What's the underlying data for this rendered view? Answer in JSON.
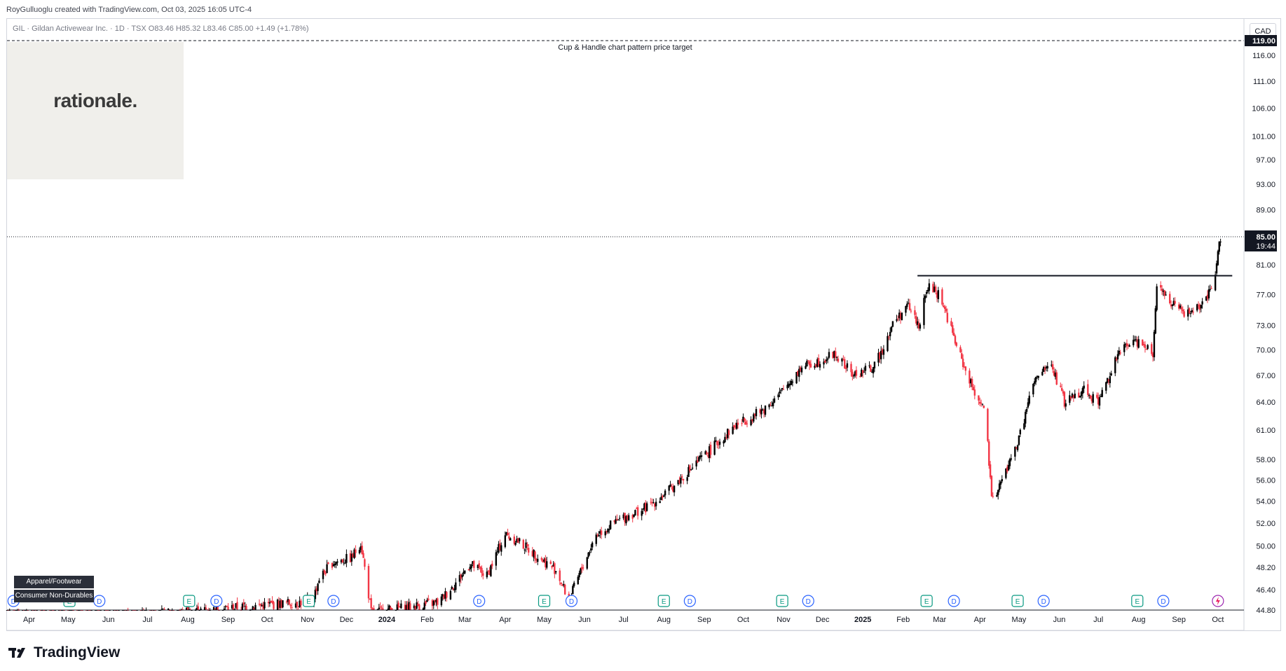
{
  "header": {
    "credit": "RoyGulluoglu created with TradingView.com, Oct 03, 2025 16:05 UTC-4",
    "symbol_line": "GIL · Gildan Activewear Inc. · 1D · TSX  O83.46  H85.32  L83.46  C85.00  +1.49 (+1.78%)"
  },
  "watermark": {
    "text": "rationale."
  },
  "currency": "CAD",
  "footer": {
    "brand": "TradingView"
  },
  "sector_tags": [
    "Apparel/Footwear",
    "Consumer Non-Durables"
  ],
  "colors": {
    "up": "#000000",
    "down": "#f23645",
    "event_earnings": "#089981",
    "event_dividend": "#2962ff",
    "grid": "#ffffff"
  },
  "chart_data": {
    "type": "candlestick",
    "title": "",
    "price_scale": "log",
    "ylim": [
      44.8,
      119.0
    ],
    "y_ticks": [
      "116.00",
      "111.00",
      "106.00",
      "101.00",
      "97.00",
      "93.00",
      "89.00",
      "81.00",
      "77.00",
      "73.00",
      "70.00",
      "67.00",
      "64.00",
      "61.00",
      "58.00",
      "56.00",
      "54.00",
      "52.00",
      "50.00",
      "48.20",
      "46.40",
      "44.80"
    ],
    "y_tick_values": [
      116,
      111,
      106,
      101,
      97,
      93,
      89,
      81,
      77,
      73,
      70,
      67,
      64,
      61,
      58,
      56,
      54,
      52,
      50,
      48.2,
      46.4,
      44.8
    ],
    "x_ticks": [
      "Apr",
      "May",
      "Jun",
      "Jul",
      "Aug",
      "Sep",
      "Oct",
      "Nov",
      "Dec",
      "2024",
      "Feb",
      "Mar",
      "Apr",
      "May",
      "Jun",
      "Jul",
      "Aug",
      "Sep",
      "Oct",
      "Nov",
      "Dec",
      "2025",
      "Feb",
      "Mar",
      "Apr",
      "May",
      "Jun",
      "Jul",
      "Aug",
      "Sep",
      "Oct"
    ],
    "x_range": [
      "2023-03-15",
      "2025-10-21"
    ],
    "x_tick_dates": [
      "2023-04-01",
      "2023-05-01",
      "2023-06-01",
      "2023-07-01",
      "2023-08-01",
      "2023-09-01",
      "2023-10-01",
      "2023-11-01",
      "2023-12-01",
      "2024-01-01",
      "2024-02-01",
      "2024-03-01",
      "2024-04-01",
      "2024-05-01",
      "2024-06-01",
      "2024-07-01",
      "2024-08-01",
      "2024-09-01",
      "2024-10-01",
      "2024-11-01",
      "2024-12-01",
      "2025-01-01",
      "2025-02-01",
      "2025-03-01",
      "2025-04-01",
      "2025-05-01",
      "2025-06-01",
      "2025-07-01",
      "2025-08-01",
      "2025-09-01",
      "2025-10-01"
    ],
    "last_price": {
      "label": "85.00",
      "value": 85.0,
      "countdown": "19:44"
    },
    "target": {
      "label": "119.00",
      "value": 119.0,
      "annotation": "Cup & Handle chart pattern price target"
    },
    "resistance": {
      "value": 79.5,
      "from": "2025-02-12",
      "to": "2025-10-12"
    },
    "price_path": [
      [
        "2023-03-15",
        44.5
      ],
      [
        "2023-04-01",
        44.2
      ],
      [
        "2023-05-15",
        44.0
      ],
      [
        "2023-11-05",
        45.5
      ],
      [
        "2023-11-10",
        47.3
      ],
      [
        "2023-11-20",
        48.6
      ],
      [
        "2023-12-05",
        49.0
      ],
      [
        "2023-12-12",
        50.3
      ],
      [
        "2023-12-20",
        44.6
      ],
      [
        "2024-02-10",
        45.4
      ],
      [
        "2024-02-25",
        47.2
      ],
      [
        "2024-03-05",
        48.5
      ],
      [
        "2024-03-18",
        47.5
      ],
      [
        "2024-04-01",
        51.0
      ],
      [
        "2024-04-10",
        50.5
      ],
      [
        "2024-04-25",
        49.2
      ],
      [
        "2024-05-10",
        48.0
      ],
      [
        "2024-05-20",
        45.5
      ],
      [
        "2024-06-10",
        51.0
      ],
      [
        "2024-07-01",
        52.5
      ],
      [
        "2024-07-20",
        53.5
      ],
      [
        "2024-08-05",
        55.0
      ],
      [
        "2024-08-25",
        57.5
      ],
      [
        "2024-09-10",
        59.5
      ],
      [
        "2024-09-25",
        61.5
      ],
      [
        "2024-10-15",
        63.0
      ],
      [
        "2024-10-30",
        65.0
      ],
      [
        "2024-11-15",
        68.0
      ],
      [
        "2024-11-25",
        68.5
      ],
      [
        "2024-12-10",
        69.5
      ],
      [
        "2024-12-25",
        67.0
      ],
      [
        "2025-01-10",
        68.0
      ],
      [
        "2025-01-25",
        73.5
      ],
      [
        "2025-02-05",
        75.5
      ],
      [
        "2025-02-13",
        73.0
      ],
      [
        "2025-02-20",
        78.0
      ],
      [
        "2025-03-01",
        77.0
      ],
      [
        "2025-03-15",
        70.0
      ],
      [
        "2025-03-25",
        66.0
      ],
      [
        "2025-04-05",
        63.0
      ],
      [
        "2025-04-10",
        54.0
      ],
      [
        "2025-04-20",
        56.5
      ],
      [
        "2025-05-01",
        60.0
      ],
      [
        "2025-05-12",
        66.0
      ],
      [
        "2025-05-25",
        68.5
      ],
      [
        "2025-06-05",
        64.0
      ],
      [
        "2025-06-20",
        65.5
      ],
      [
        "2025-07-01",
        64.0
      ],
      [
        "2025-07-15",
        69.0
      ],
      [
        "2025-07-25",
        71.0
      ],
      [
        "2025-08-05",
        71.0
      ],
      [
        "2025-08-12",
        69.5
      ],
      [
        "2025-08-15",
        78.5
      ],
      [
        "2025-08-25",
        76.0
      ],
      [
        "2025-09-05",
        74.5
      ],
      [
        "2025-09-20",
        75.5
      ],
      [
        "2025-09-28",
        78.5
      ],
      [
        "2025-10-03",
        85.0
      ]
    ],
    "events": [
      {
        "type": "D",
        "date": "2023-03-20"
      },
      {
        "type": "E",
        "date": "2023-05-02"
      },
      {
        "type": "D",
        "date": "2023-05-25"
      },
      {
        "type": "E",
        "date": "2023-08-02"
      },
      {
        "type": "D",
        "date": "2023-08-23"
      },
      {
        "type": "E",
        "date": "2023-11-02"
      },
      {
        "type": "D",
        "date": "2023-11-21"
      },
      {
        "type": "D",
        "date": "2024-03-12"
      },
      {
        "type": "E",
        "date": "2024-05-01"
      },
      {
        "type": "D",
        "date": "2024-05-22"
      },
      {
        "type": "E",
        "date": "2024-08-01"
      },
      {
        "type": "D",
        "date": "2024-08-21"
      },
      {
        "type": "E",
        "date": "2024-10-31"
      },
      {
        "type": "D",
        "date": "2024-11-20"
      },
      {
        "type": "E",
        "date": "2025-02-19"
      },
      {
        "type": "D",
        "date": "2025-03-12"
      },
      {
        "type": "E",
        "date": "2025-04-30"
      },
      {
        "type": "D",
        "date": "2025-05-20"
      },
      {
        "type": "E",
        "date": "2025-07-31"
      },
      {
        "type": "D",
        "date": "2025-08-20"
      }
    ]
  }
}
